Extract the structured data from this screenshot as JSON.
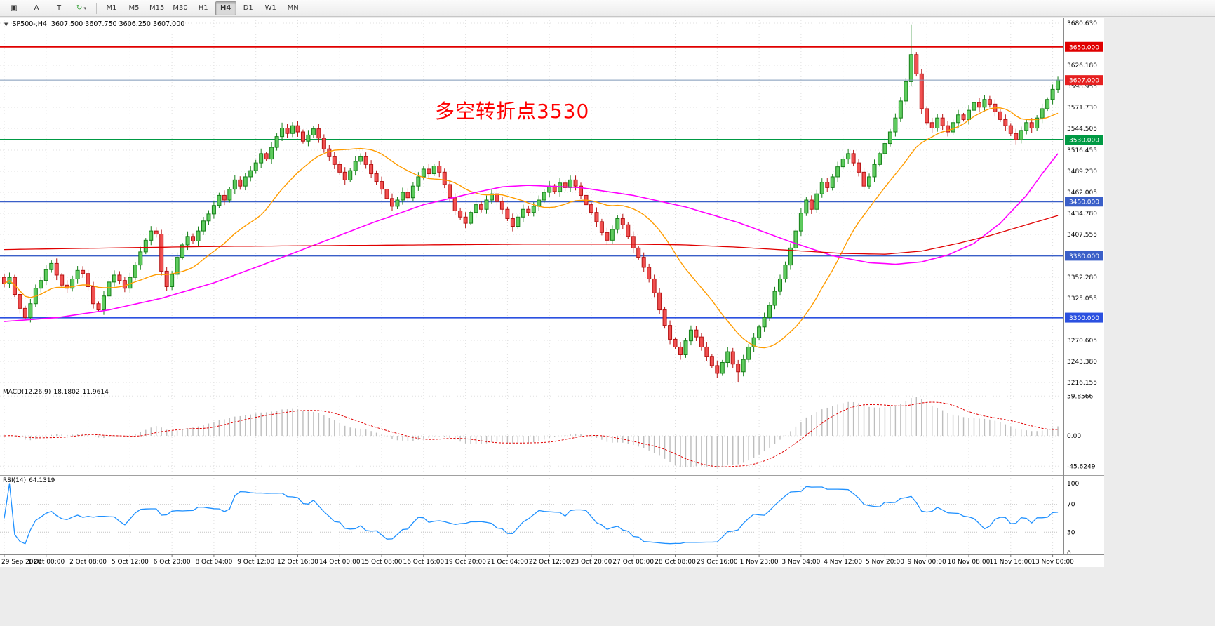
{
  "toolbar": {
    "tools": [
      {
        "name": "chart-mode",
        "glyph": "▣"
      },
      {
        "name": "crosshair",
        "glyph": "A"
      },
      {
        "name": "text-tool",
        "glyph": "T"
      },
      {
        "name": "refresh",
        "glyph": "↻",
        "color": "#2e9e2e",
        "caret": "▾"
      }
    ],
    "timeframes": [
      {
        "label": "M1",
        "active": false
      },
      {
        "label": "M5",
        "active": false
      },
      {
        "label": "M15",
        "active": false
      },
      {
        "label": "M30",
        "active": false
      },
      {
        "label": "H1",
        "active": false
      },
      {
        "label": "H4",
        "active": true
      },
      {
        "label": "D1",
        "active": false
      },
      {
        "label": "W1",
        "active": false
      },
      {
        "label": "MN",
        "active": false
      }
    ]
  },
  "chart": {
    "collapse_icon": "▼",
    "symbol_header": "SP500-,H4",
    "ohlc": "3607.500 3607.750 3606.250 3607.000",
    "annotation": {
      "text": "多空转折点3530",
      "color": "#ff0000"
    }
  },
  "chart_data": {
    "type": "candlestick",
    "symbol": "SP500-",
    "timeframe": "H4",
    "bars_per_label": 8,
    "x_labels": [
      "29 Sep 2020",
      "1 Oct 00:00",
      "2 Oct 08:00",
      "5 Oct 12:00",
      "6 Oct 20:00",
      "8 Oct 04:00",
      "9 Oct 12:00",
      "12 Oct 16:00",
      "14 Oct 00:00",
      "15 Oct 08:00",
      "16 Oct 16:00",
      "19 Oct 20:00",
      "21 Oct 04:00",
      "22 Oct 12:00",
      "23 Oct 20:00",
      "27 Oct 00:00",
      "28 Oct 08:00",
      "29 Oct 16:00",
      "1 Nov 23:00",
      "3 Nov 04:00",
      "4 Nov 12:00",
      "5 Nov 20:00",
      "9 Nov 00:00",
      "10 Nov 08:00",
      "11 Nov 16:00",
      "13 Nov 00:00"
    ],
    "closes": [
      3344,
      3352,
      3330,
      3312,
      3300,
      3318,
      3338,
      3348,
      3362,
      3370,
      3355,
      3342,
      3338,
      3350,
      3361,
      3357,
      3340,
      3318,
      3310,
      3328,
      3346,
      3355,
      3348,
      3338,
      3352,
      3368,
      3385,
      3400,
      3412,
      3408,
      3360,
      3340,
      3356,
      3378,
      3394,
      3405,
      3399,
      3412,
      3425,
      3434,
      3445,
      3458,
      3452,
      3466,
      3478,
      3470,
      3482,
      3490,
      3500,
      3512,
      3505,
      3520,
      3534,
      3545,
      3538,
      3548,
      3540,
      3528,
      3536,
      3544,
      3532,
      3518,
      3508,
      3498,
      3488,
      3478,
      3490,
      3502,
      3508,
      3498,
      3486,
      3476,
      3466,
      3454,
      3444,
      3452,
      3462,
      3455,
      3470,
      3482,
      3492,
      3486,
      3496,
      3488,
      3472,
      3455,
      3438,
      3430,
      3422,
      3436,
      3446,
      3440,
      3452,
      3460,
      3450,
      3440,
      3428,
      3418,
      3430,
      3440,
      3436,
      3444,
      3452,
      3462,
      3470,
      3463,
      3474,
      3468,
      3478,
      3470,
      3458,
      3446,
      3436,
      3424,
      3410,
      3400,
      3414,
      3428,
      3420,
      3405,
      3390,
      3378,
      3365,
      3350,
      3332,
      3310,
      3290,
      3272,
      3262,
      3252,
      3270,
      3284,
      3275,
      3262,
      3250,
      3238,
      3228,
      3242,
      3256,
      3240,
      3230,
      3246,
      3262,
      3274,
      3288,
      3300,
      3316,
      3334,
      3350,
      3368,
      3390,
      3412,
      3435,
      3452,
      3440,
      3460,
      3475,
      3468,
      3482,
      3495,
      3505,
      3512,
      3500,
      3488,
      3470,
      3482,
      3498,
      3512,
      3525,
      3540,
      3558,
      3580,
      3605,
      3640,
      3615,
      3570,
      3552,
      3545,
      3558,
      3548,
      3540,
      3552,
      3562,
      3556,
      3568,
      3578,
      3572,
      3582,
      3576,
      3566,
      3556,
      3548,
      3538,
      3530,
      3542,
      3552,
      3545,
      3558,
      3570,
      3582,
      3595,
      3607
    ],
    "wick_extremes": [
      {
        "bar": 53,
        "high": 3552
      },
      {
        "bar": 136,
        "low": 3222
      },
      {
        "bar": 140,
        "low": 3217
      },
      {
        "bar": 173,
        "high": 3679
      }
    ],
    "y_axis": {
      "top": 3680.63,
      "bottom": 3216.155,
      "ticks": [
        3680.63,
        3626.18,
        3598.955,
        3571.73,
        3544.505,
        3516.455,
        3489.23,
        3462.005,
        3434.78,
        3407.555,
        3352.28,
        3325.055,
        3270.605,
        3243.38,
        3216.155
      ]
    },
    "levels": [
      {
        "price": 3650.0,
        "label": "3650.000",
        "color": "#e00000"
      },
      {
        "price": 3530.0,
        "label": "3530.000",
        "color": "#009a44"
      },
      {
        "price": 3450.0,
        "label": "3450.000",
        "color": "#3a5fc8"
      },
      {
        "price": 3380.0,
        "label": "3380.000",
        "color": "#3a5fc8"
      },
      {
        "price": 3300.0,
        "label": "3300.000",
        "color": "#2b50e0"
      }
    ],
    "current_price": {
      "price": 3607.0,
      "label": "3607.000",
      "line_color": "#7e96b8",
      "badge_color": "#e62020"
    },
    "candle_colors": {
      "up_fill": "#5ecb5e",
      "up_stroke": "#17801a",
      "down_fill": "#f05050",
      "down_stroke": "#b51414"
    },
    "moving_averages": [
      {
        "name": "ma-fast",
        "style": "computed",
        "period": 20,
        "color": "#ff9c00",
        "width": 1.4
      },
      {
        "name": "ma-mid",
        "style": "anchors",
        "color": "#ff00ff",
        "width": 1.6,
        "points": [
          [
            0,
            3295
          ],
          [
            10,
            3300
          ],
          [
            20,
            3310
          ],
          [
            30,
            3325
          ],
          [
            40,
            3345
          ],
          [
            50,
            3370
          ],
          [
            60,
            3396
          ],
          [
            70,
            3422
          ],
          [
            80,
            3446
          ],
          [
            90,
            3462
          ],
          [
            95,
            3469
          ],
          [
            100,
            3471
          ],
          [
            110,
            3468
          ],
          [
            120,
            3458
          ],
          [
            130,
            3443
          ],
          [
            140,
            3423
          ],
          [
            150,
            3398
          ],
          [
            158,
            3380
          ],
          [
            165,
            3371
          ],
          [
            170,
            3369
          ],
          [
            175,
            3372
          ],
          [
            180,
            3381
          ],
          [
            185,
            3396
          ],
          [
            190,
            3422
          ],
          [
            195,
            3458
          ],
          [
            198,
            3486
          ],
          [
            201,
            3512
          ]
        ]
      },
      {
        "name": "ma-slow",
        "style": "anchors",
        "color": "#e00000",
        "width": 1.3,
        "points": [
          [
            0,
            3388
          ],
          [
            20,
            3390
          ],
          [
            40,
            3392
          ],
          [
            60,
            3393
          ],
          [
            80,
            3394
          ],
          [
            100,
            3395
          ],
          [
            120,
            3395
          ],
          [
            130,
            3394
          ],
          [
            140,
            3391
          ],
          [
            150,
            3387
          ],
          [
            160,
            3383
          ],
          [
            168,
            3382
          ],
          [
            175,
            3386
          ],
          [
            182,
            3396
          ],
          [
            188,
            3406
          ],
          [
            194,
            3418
          ],
          [
            201,
            3432
          ]
        ]
      }
    ],
    "macd": {
      "label": "MACD(12,26,9)",
      "value_main": "18.1802",
      "value_signal": "11.9614",
      "fast": 12,
      "slow": 26,
      "signal": 9,
      "axis_ticks": [
        59.8566,
        0,
        -45.6249
      ],
      "axis_labels": [
        "59.8566",
        "0.00",
        "-45.6249"
      ],
      "hist_color": "#bdbdbd",
      "signal_color": "#e00000"
    },
    "rsi": {
      "label": "RSI(14)",
      "value": "64.1319",
      "period": 14,
      "axis_ticks": [
        100,
        70,
        30,
        0
      ],
      "levels": [
        70,
        30
      ],
      "line_color": "#1e90ff"
    }
  }
}
